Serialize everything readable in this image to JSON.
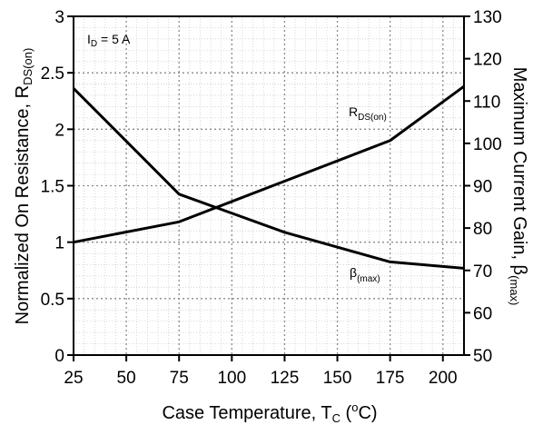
{
  "chart_data": {
    "type": "line",
    "x": [
      25,
      75,
      125,
      175,
      210
    ],
    "xlabel": "Case Temperature, T",
    "xlabel_sub": "C",
    "xlabel_suffix": " (",
    "xlabel_sup": "o",
    "xlabel_end": "C)",
    "xlim": [
      25,
      210
    ],
    "xticks": [
      "25",
      "50",
      "75",
      "100",
      "125",
      "150",
      "175",
      "200"
    ],
    "y_left": {
      "label": "Normalized On Resistance, R",
      "label_sub": "DS(on)",
      "lim": [
        0,
        3
      ],
      "ticks": [
        "0",
        "0.5",
        "1",
        "1.5",
        "2",
        "2.5",
        "3"
      ]
    },
    "y_right": {
      "label": "Maximum Current Gain,  β",
      "label_sub": "(max)",
      "lim": [
        50,
        130
      ],
      "ticks": [
        "50",
        "60",
        "70",
        "80",
        "90",
        "100",
        "110",
        "120",
        "130"
      ]
    },
    "series": [
      {
        "name": "R",
        "name_sub": "DS(on)",
        "axis": "left",
        "values": [
          1.0,
          1.18,
          1.54,
          1.9,
          2.38
        ]
      },
      {
        "name": "β",
        "name_sub": "(max)",
        "axis": "right",
        "values": [
          113,
          88,
          79,
          72,
          70.5
        ]
      }
    ],
    "annotation": {
      "text": "I",
      "sub": "D",
      "rest": " = 5 A"
    },
    "grid": true,
    "grid_style": "dotted",
    "legend": "inline labels on curves"
  }
}
